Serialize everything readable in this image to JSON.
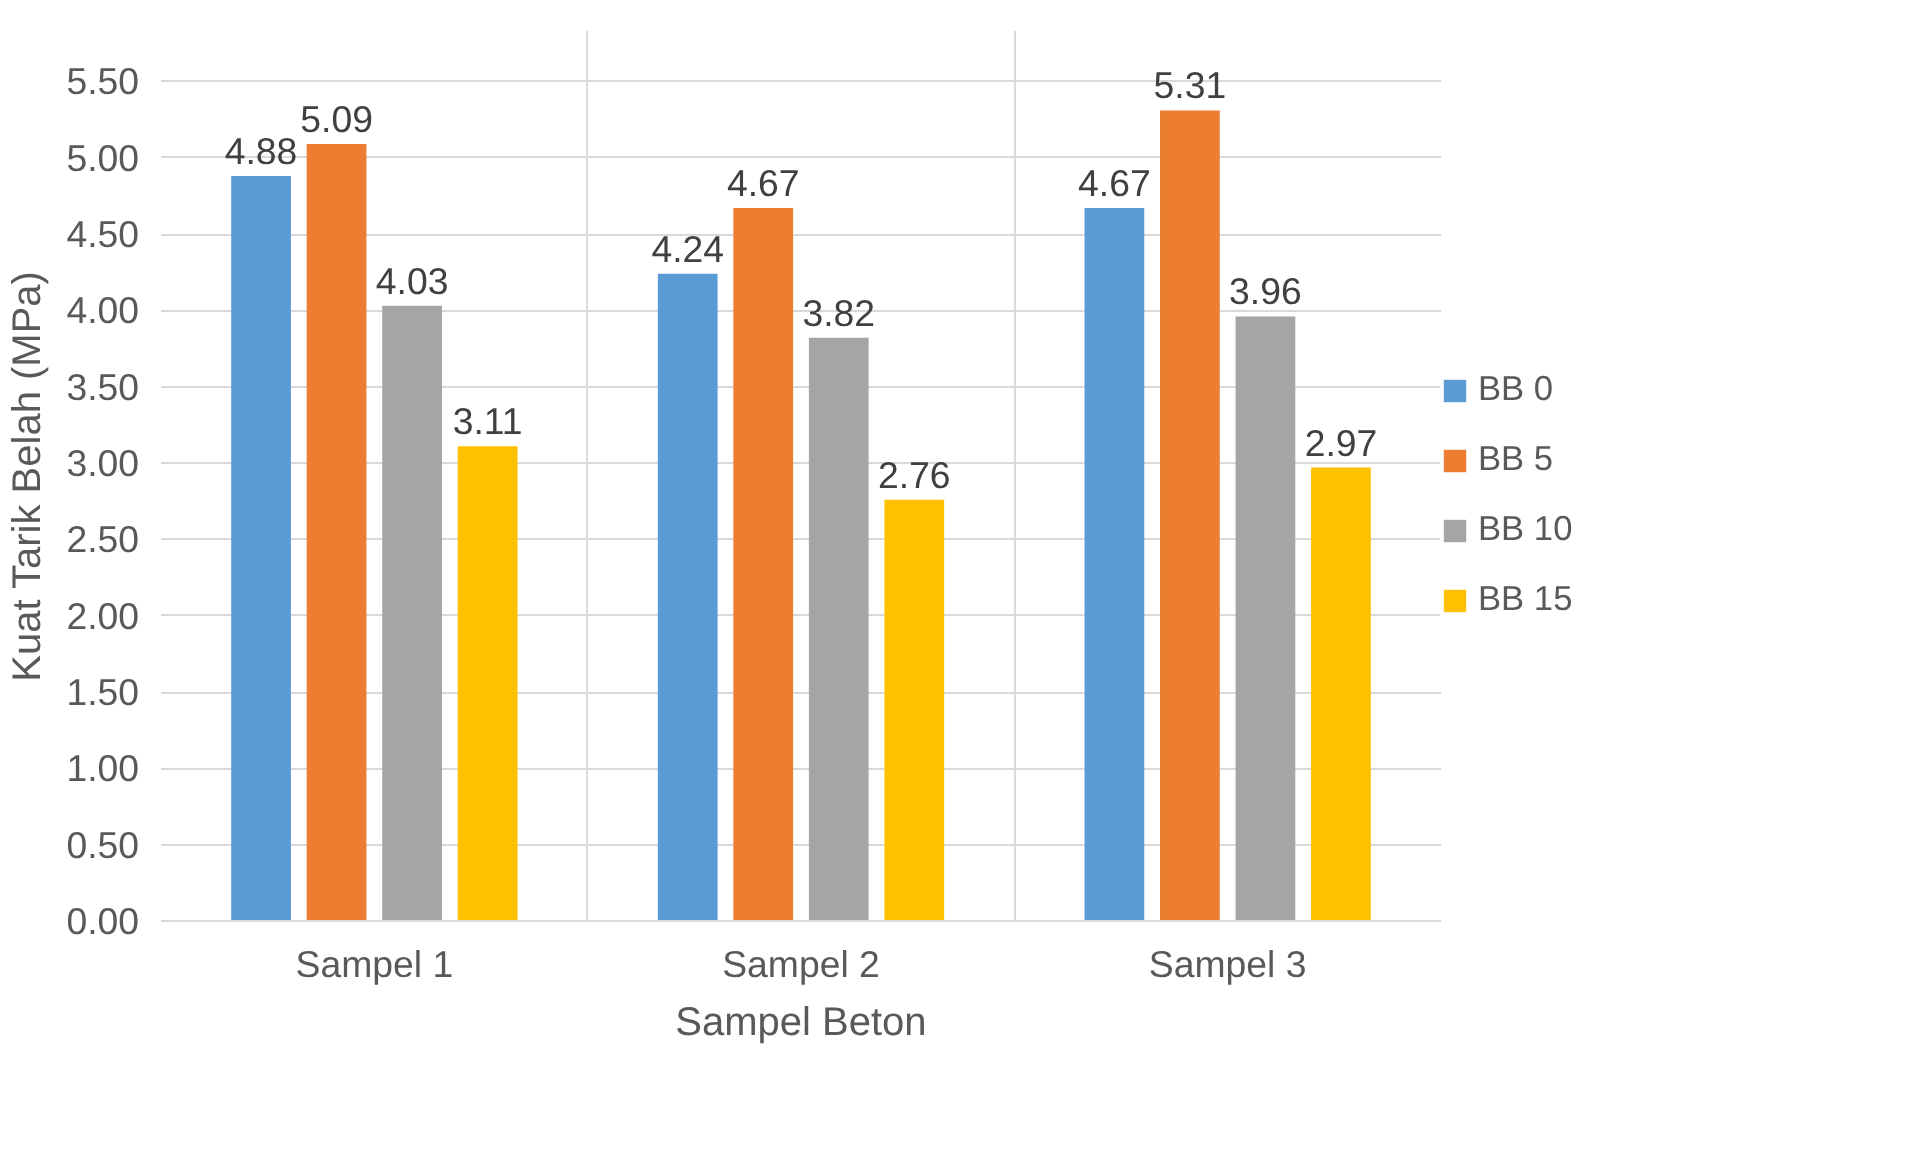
{
  "chart_data": {
    "type": "bar",
    "xlabel": "Sampel Beton",
    "ylabel": "Kuat Tarik Belah (MPa)",
    "categories": [
      "Sampel 1",
      "Sampel 2",
      "Sampel 3"
    ],
    "series": [
      {
        "name": "BB 0",
        "color": "#5b9bd5",
        "values": [
          4.88,
          4.24,
          4.67
        ]
      },
      {
        "name": "BB 5",
        "color": "#ed7d31",
        "values": [
          5.09,
          4.67,
          5.31
        ]
      },
      {
        "name": "BB 10",
        "color": "#a5a5a5",
        "values": [
          4.03,
          3.82,
          3.96
        ]
      },
      {
        "name": "BB 15",
        "color": "#ffc000",
        "values": [
          3.11,
          2.76,
          2.97
        ]
      }
    ],
    "ylim": [
      0,
      5.5
    ],
    "yticks": [
      {
        "value": 0,
        "label": "0.00"
      },
      {
        "value": 0.5,
        "label": "0.50"
      },
      {
        "value": 1,
        "label": "1.00"
      },
      {
        "value": 1.5,
        "label": "1.50"
      },
      {
        "value": 2,
        "label": "2.00"
      },
      {
        "value": 2.5,
        "label": "2.50"
      },
      {
        "value": 3,
        "label": "3.00"
      },
      {
        "value": 3.5,
        "label": "3.50"
      },
      {
        "value": 4,
        "label": "4.00"
      },
      {
        "value": 4.5,
        "label": "4.50"
      },
      {
        "value": 5,
        "label": "5.00"
      },
      {
        "value": 5.5,
        "label": "5.50"
      }
    ],
    "grid": true,
    "legend": "right",
    "data_labels": true
  }
}
